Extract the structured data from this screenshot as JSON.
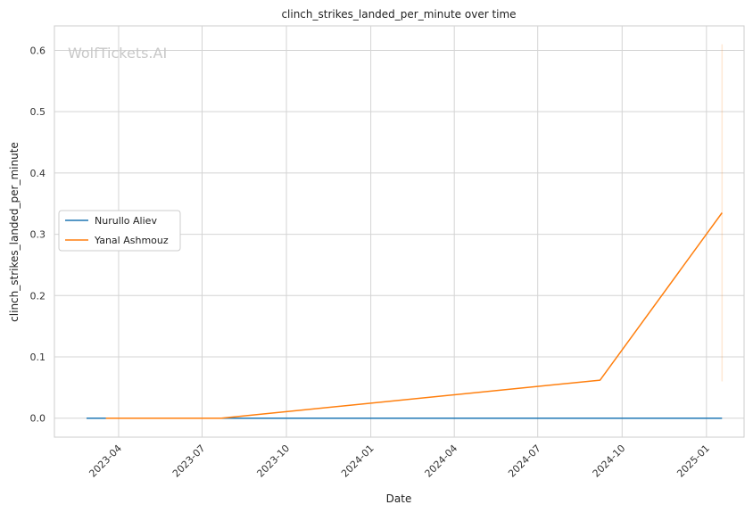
{
  "chart_data": {
    "type": "line",
    "title": "clinch_strikes_landed_per_minute over time",
    "xlabel": "Date",
    "ylabel": "clinch_strikes_landed_per_minute",
    "watermark": "WolfTickets.AI",
    "x_ticks": [
      "2023-04",
      "2023-07",
      "2023-10",
      "2024-01",
      "2024-04",
      "2024-07",
      "2024-10",
      "2025-01"
    ],
    "y_ticks": [
      "0.0",
      "0.1",
      "0.2",
      "0.3",
      "0.4",
      "0.5",
      "0.6"
    ],
    "xlim": [
      "2023-01-21",
      "2025-02-11"
    ],
    "ylim": [
      -0.031,
      0.64
    ],
    "grid": true,
    "legend_position": "center-left",
    "series": [
      {
        "name": "Nurullo Aliev",
        "color": "#1f77b4",
        "x": [
          "2023-02-25",
          "2025-01-18"
        ],
        "y": [
          0.0,
          0.0
        ]
      },
      {
        "name": "Yanal Ashmouz",
        "color": "#ff7f0e",
        "x": [
          "2023-03-18",
          "2023-07-22",
          "2024-09-07",
          "2025-01-18"
        ],
        "y": [
          0.0,
          0.0,
          0.062,
          0.335
        ],
        "band": {
          "x": "2025-01-18",
          "low": 0.06,
          "high": 0.61
        }
      }
    ]
  }
}
